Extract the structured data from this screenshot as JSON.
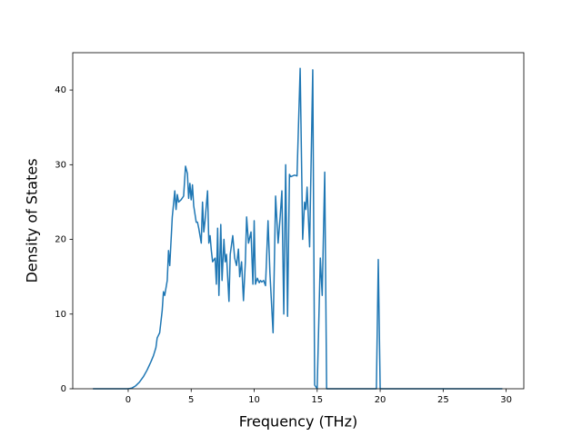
{
  "chart_data": {
    "type": "line",
    "xlabel": "Frequency (THz)",
    "ylabel": "Density of States",
    "x": [
      -2.8,
      0,
      0.3,
      0.6,
      0.9,
      1.2,
      1.5,
      1.8,
      2.0,
      2.2,
      2.3,
      2.5,
      2.7,
      2.8,
      2.9,
      3.1,
      3.2,
      3.3,
      3.5,
      3.7,
      3.8,
      3.9,
      4.0,
      4.2,
      4.4,
      4.55,
      4.7,
      4.8,
      4.9,
      5.0,
      5.1,
      5.2,
      5.4,
      5.5,
      5.6,
      5.8,
      5.9,
      6.0,
      6.1,
      6.3,
      6.4,
      6.5,
      6.6,
      6.7,
      6.9,
      7.0,
      7.1,
      7.2,
      7.35,
      7.45,
      7.6,
      7.7,
      7.8,
      8.0,
      8.1,
      8.3,
      8.45,
      8.6,
      8.75,
      8.85,
      9.0,
      9.15,
      9.3,
      9.4,
      9.55,
      9.75,
      9.9,
      10.0,
      10.1,
      10.25,
      10.4,
      10.5,
      10.6,
      10.75,
      10.9,
      11.1,
      11.25,
      11.5,
      11.7,
      11.9,
      12.05,
      12.2,
      12.35,
      12.5,
      12.65,
      12.8,
      12.9,
      13.05,
      13.2,
      13.4,
      13.65,
      13.85,
      14.0,
      14.1,
      14.2,
      14.4,
      14.65,
      14.8,
      15.0,
      15.25,
      15.4,
      15.6,
      15.75,
      19.7,
      19.85,
      20.0,
      29.7
    ],
    "values": [
      0,
      0,
      0.1,
      0.4,
      0.9,
      1.6,
      2.5,
      3.6,
      4.4,
      5.5,
      6.8,
      7.5,
      10.5,
      13,
      12.5,
      14.5,
      18.5,
      16.5,
      23,
      26.5,
      24,
      26,
      25,
      25.3,
      25.8,
      29.8,
      28.8,
      25.5,
      27.5,
      25.3,
      27.3,
      24.5,
      22.3,
      22.3,
      21.5,
      19.5,
      25,
      21,
      22.5,
      26.5,
      19.5,
      20.5,
      18.5,
      17,
      17.5,
      14,
      21.5,
      12.5,
      22,
      14.5,
      20,
      17,
      18,
      11.7,
      18,
      20.5,
      17.5,
      16.5,
      18.7,
      15,
      17,
      11.8,
      17,
      23,
      19.5,
      21,
      14,
      22.5,
      14,
      14.8,
      14.2,
      14.5,
      14.3,
      14.5,
      13.8,
      22.5,
      15.5,
      7.5,
      25.8,
      19.5,
      22.7,
      26.5,
      10,
      30,
      9.7,
      28.7,
      28.4,
      28.5,
      28.6,
      28.5,
      42.9,
      20,
      25,
      24,
      27,
      19,
      42.7,
      0.5,
      0,
      17.5,
      12.5,
      29,
      0,
      0,
      17.3,
      0,
      0
    ],
    "color": "#1f77b4",
    "xlim": [
      -4.4,
      31.4
    ],
    "xticks": [
      0,
      5,
      10,
      15,
      20,
      25,
      30
    ],
    "ylim": [
      0,
      45
    ],
    "yticks": [
      0,
      10,
      20,
      30,
      40
    ]
  }
}
